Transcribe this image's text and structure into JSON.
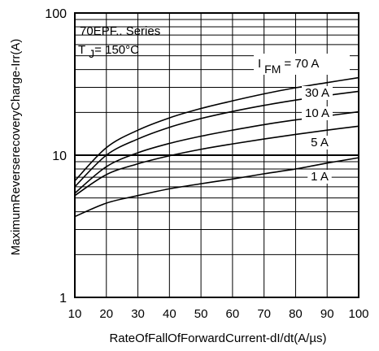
{
  "chart_data": {
    "type": "line",
    "xlabel": "RateOfFallOfForwardCurrent-dI/dt(A/µs)",
    "ylabel": "MaximumReverserecoveryCharge-Irr(A)",
    "xlim": [
      10,
      100
    ],
    "ylim": [
      1,
      100
    ],
    "yscale": "log",
    "grid": true,
    "x_ticks": [
      "10",
      "20",
      "30",
      "40",
      "50",
      "60",
      "70",
      "80",
      "90",
      "100"
    ],
    "y_ticks": [
      "1",
      "10",
      "100"
    ],
    "annotations": {
      "series_name": "70EPF.. Series",
      "tj_prefix": "T",
      "tj_sub": "J",
      "tj_value": "= 150°C",
      "ifm_prefix": "I",
      "ifm_sub": "FM",
      "ifm_value": "= 70 A"
    },
    "series": [
      {
        "label": "70 A",
        "x": [
          10,
          20,
          30,
          40,
          50,
          60,
          70,
          80,
          90,
          100
        ],
        "y": [
          6.6,
          11.3,
          15.0,
          18.3,
          21.3,
          24.1,
          27.0,
          29.8,
          32.4,
          35.1
        ]
      },
      {
        "label": "30 A",
        "x": [
          10,
          20,
          30,
          40,
          50,
          60,
          70,
          80,
          90,
          100
        ],
        "y": [
          6.0,
          10.0,
          13.0,
          15.7,
          18.1,
          20.3,
          22.4,
          24.4,
          26.3,
          28.1
        ]
      },
      {
        "label": "10 A",
        "x": [
          10,
          20,
          30,
          40,
          50,
          60,
          70,
          80,
          90,
          100
        ],
        "y": [
          5.4,
          8.3,
          10.4,
          12.1,
          13.6,
          15.0,
          16.4,
          17.7,
          18.9,
          20.2
        ]
      },
      {
        "label": "5 A",
        "x": [
          10,
          20,
          30,
          40,
          50,
          60,
          70,
          80,
          90,
          100
        ],
        "y": [
          5.2,
          7.3,
          8.7,
          9.9,
          11.0,
          12.0,
          13.0,
          14.0,
          15.0,
          16.0
        ]
      },
      {
        "label": "1 A",
        "x": [
          10,
          20,
          30,
          40,
          50,
          60,
          70,
          80,
          90,
          100
        ],
        "y": [
          3.7,
          4.6,
          5.2,
          5.8,
          6.3,
          6.8,
          7.4,
          8.0,
          8.8,
          9.6
        ]
      }
    ]
  }
}
